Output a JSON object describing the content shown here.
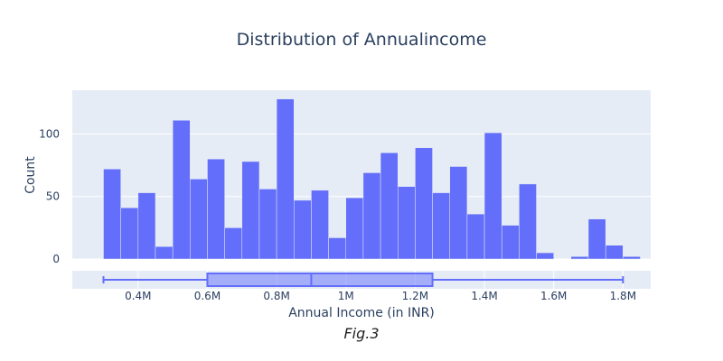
{
  "chart_data": {
    "type": "bar",
    "subtype": "histogram with marginal box plot",
    "title": "Distribution of Annualincome",
    "xlabel": "Annual Income (in INR)",
    "ylabel": "Count",
    "caption": "Fig.3",
    "bin_width": 50000,
    "x_range": [
      210000,
      1880000
    ],
    "ylim": [
      0,
      135
    ],
    "y_ticks": [
      0,
      50,
      100
    ],
    "y_tick_labels": [
      "0",
      "50",
      "100"
    ],
    "x_ticks": [
      400000,
      600000,
      800000,
      1000000,
      1200000,
      1400000,
      1600000,
      1800000
    ],
    "x_tick_labels": [
      "0.4M",
      "0.6M",
      "0.8M",
      "1M",
      "1.2M",
      "1.4M",
      "1.6M",
      "1.8M"
    ],
    "bins": [
      {
        "start": 300000,
        "count": 72
      },
      {
        "start": 350000,
        "count": 41
      },
      {
        "start": 400000,
        "count": 53
      },
      {
        "start": 450000,
        "count": 10
      },
      {
        "start": 500000,
        "count": 111
      },
      {
        "start": 550000,
        "count": 64
      },
      {
        "start": 600000,
        "count": 80
      },
      {
        "start": 650000,
        "count": 25
      },
      {
        "start": 700000,
        "count": 78
      },
      {
        "start": 750000,
        "count": 56
      },
      {
        "start": 800000,
        "count": 128
      },
      {
        "start": 850000,
        "count": 47
      },
      {
        "start": 900000,
        "count": 55
      },
      {
        "start": 950000,
        "count": 17
      },
      {
        "start": 1000000,
        "count": 49
      },
      {
        "start": 1050000,
        "count": 69
      },
      {
        "start": 1100000,
        "count": 85
      },
      {
        "start": 1150000,
        "count": 58
      },
      {
        "start": 1200000,
        "count": 89
      },
      {
        "start": 1250000,
        "count": 53
      },
      {
        "start": 1300000,
        "count": 74
      },
      {
        "start": 1350000,
        "count": 36
      },
      {
        "start": 1400000,
        "count": 101
      },
      {
        "start": 1450000,
        "count": 27
      },
      {
        "start": 1500000,
        "count": 60
      },
      {
        "start": 1550000,
        "count": 5
      },
      {
        "start": 1600000,
        "count": 0
      },
      {
        "start": 1650000,
        "count": 2
      },
      {
        "start": 1700000,
        "count": 32
      },
      {
        "start": 1750000,
        "count": 11
      },
      {
        "start": 1800000,
        "count": 2
      }
    ],
    "boxplot": {
      "min": 300000,
      "q1": 600000,
      "median": 900000,
      "q3": 1250000,
      "max": 1800000
    },
    "colors": {
      "bar": "#636efa",
      "plot_bg": "#e5ecf6",
      "grid": "#ffffff",
      "text": "#2a3f5f",
      "box_fill": "rgba(99,110,250,0.5)"
    },
    "grid": true,
    "legend": "none"
  }
}
